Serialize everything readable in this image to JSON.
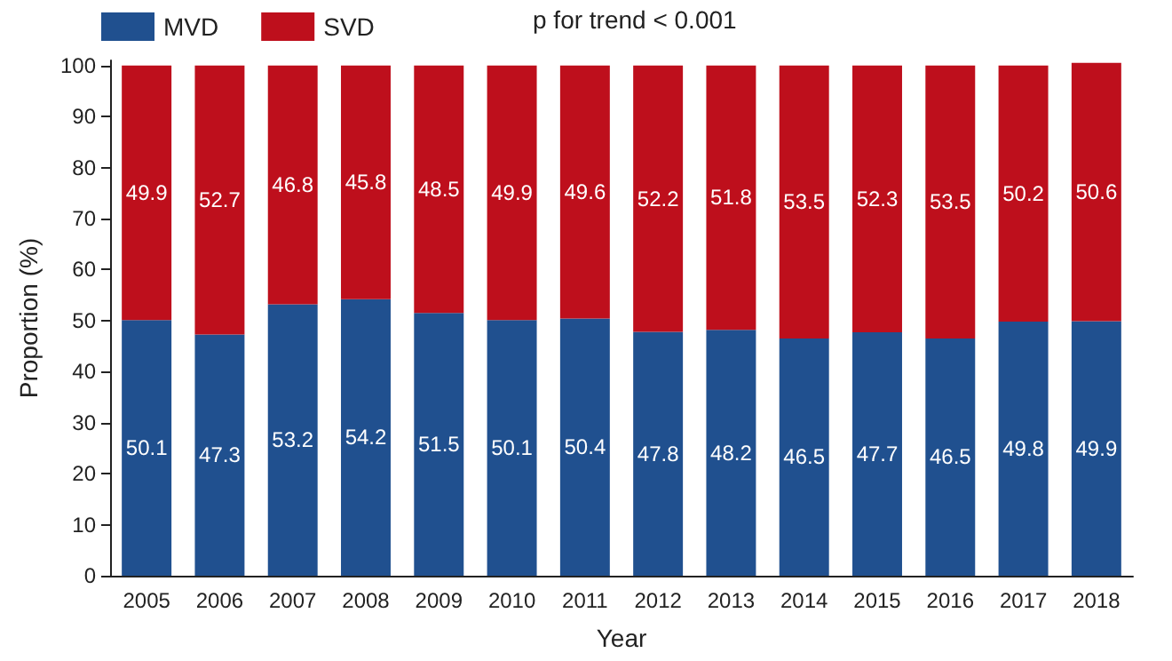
{
  "chart_data": {
    "type": "bar",
    "stacked": true,
    "xlabel": "Year",
    "ylabel": "Proportion (%)",
    "categories": [
      "2005",
      "2006",
      "2007",
      "2008",
      "2009",
      "2010",
      "2011",
      "2012",
      "2013",
      "2014",
      "2015",
      "2016",
      "2017",
      "2018"
    ],
    "series": [
      {
        "name": "MVD",
        "color": "#20508f",
        "values": [
          50.1,
          47.3,
          53.2,
          54.2,
          51.5,
          50.1,
          50.4,
          47.8,
          48.2,
          46.5,
          47.7,
          46.5,
          49.8,
          49.9
        ]
      },
      {
        "name": "SVD",
        "color": "#be0f1c",
        "values": [
          49.9,
          52.7,
          46.8,
          45.8,
          48.5,
          49.9,
          49.6,
          52.2,
          51.8,
          53.5,
          52.3,
          53.5,
          50.2,
          50.6
        ]
      }
    ],
    "ylim": [
      0,
      101
    ],
    "yticks": [
      0,
      10,
      20,
      30,
      40,
      50,
      60,
      70,
      80,
      90,
      100
    ],
    "data_labels": true,
    "grid": false,
    "legend": "top left",
    "annotations": [
      "p for trend < 0.001"
    ]
  }
}
